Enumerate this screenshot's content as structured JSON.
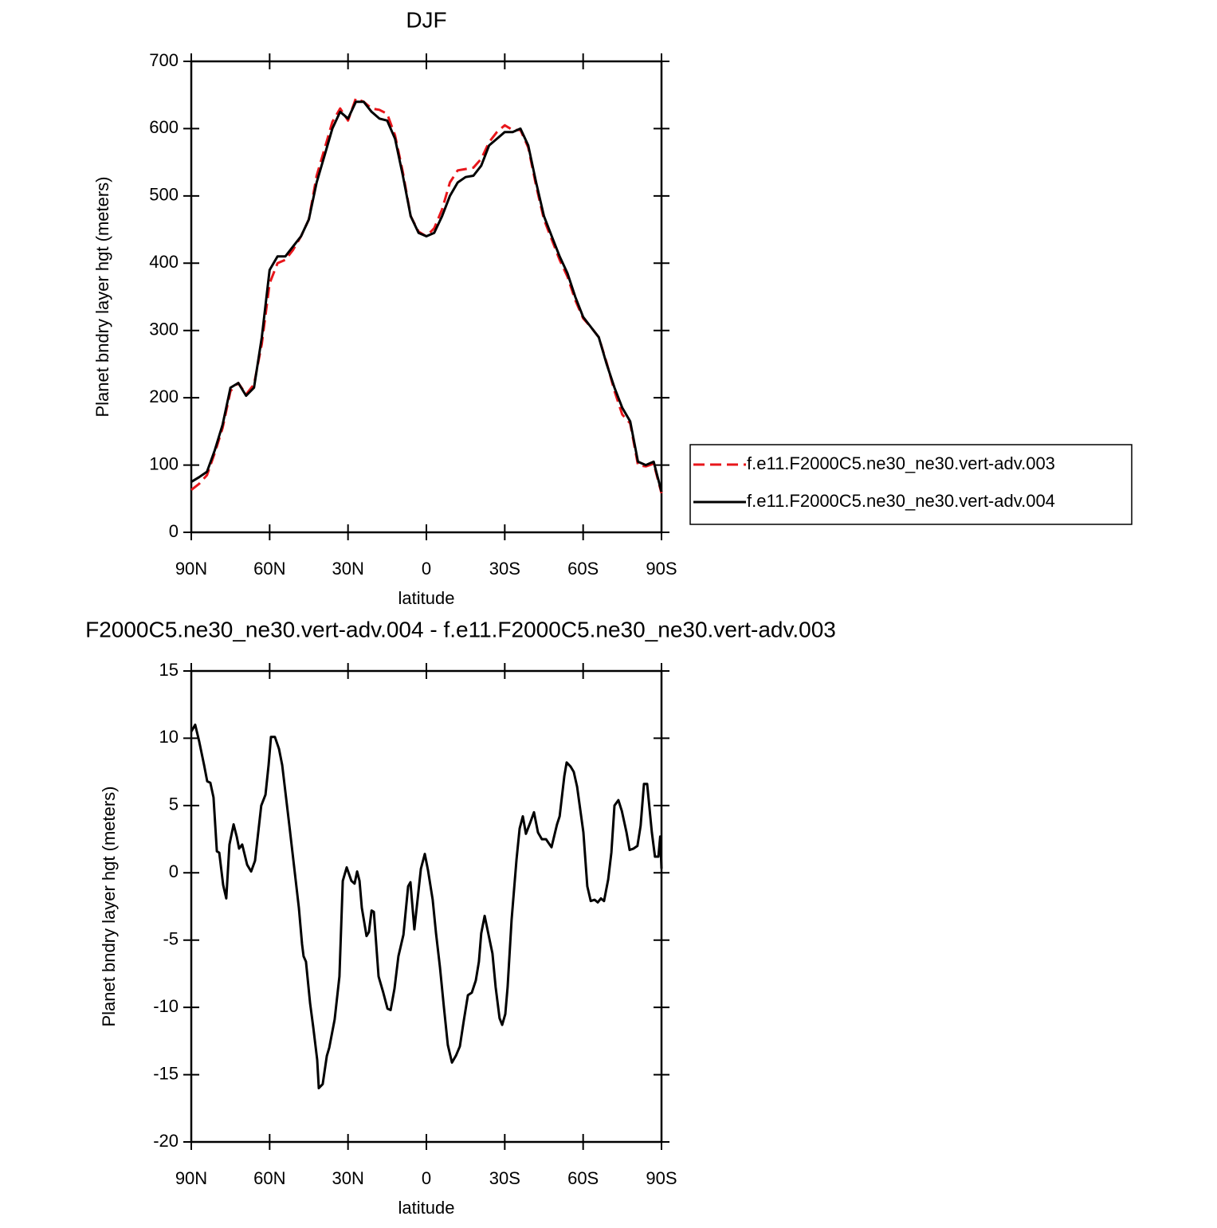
{
  "chart_data": [
    {
      "type": "line",
      "title": "DJF",
      "xlabel": "latitude",
      "ylabel": "Planet bndry layer hgt (meters)",
      "x": [
        90,
        87,
        84,
        81,
        78,
        75,
        72,
        69,
        66,
        63,
        60,
        57,
        54,
        51,
        48,
        45,
        42,
        39,
        36,
        33,
        30,
        27,
        24,
        21,
        18,
        15,
        12,
        9,
        6,
        3,
        0,
        -3,
        -6,
        -9,
        -12,
        -15,
        -18,
        -21,
        -24,
        -27,
        -30,
        -33,
        -36,
        -39,
        -42,
        -45,
        -48,
        -51,
        -54,
        -57,
        -60,
        -63,
        -66,
        -69,
        -72,
        -75,
        -78,
        -81,
        -84,
        -87,
        -90
      ],
      "series": [
        {
          "name": "f.e11.F2000C5.ne30_ne30.vert-adv.003",
          "color": "#e8161b",
          "dash": "dashed",
          "values": [
            63,
            72,
            85,
            118,
            155,
            210,
            222,
            205,
            220,
            280,
            370,
            400,
            405,
            420,
            440,
            465,
            530,
            570,
            610,
            630,
            612,
            645,
            640,
            630,
            628,
            622,
            590,
            535,
            470,
            447,
            440,
            452,
            480,
            520,
            538,
            540,
            542,
            555,
            580,
            595,
            605,
            598,
            598,
            572,
            515,
            465,
            435,
            405,
            380,
            345,
            318,
            305,
            290,
            252,
            210,
            175,
            162,
            100,
            98,
            102,
            58
          ]
        },
        {
          "name": "f.e11.F2000C5.ne30_ne30.vert-adv.004",
          "color": "#000000",
          "dash": "solid",
          "values": [
            75,
            82,
            90,
            122,
            160,
            215,
            222,
            203,
            215,
            290,
            390,
            410,
            410,
            425,
            440,
            465,
            520,
            560,
            600,
            625,
            615,
            640,
            640,
            625,
            615,
            612,
            585,
            530,
            470,
            445,
            440,
            445,
            470,
            500,
            520,
            528,
            530,
            545,
            575,
            585,
            595,
            595,
            600,
            575,
            520,
            470,
            440,
            410,
            385,
            350,
            320,
            305,
            290,
            250,
            215,
            185,
            165,
            105,
            100,
            105,
            60
          ]
        }
      ],
      "xlim": [
        90,
        -90
      ],
      "xticks": [
        {
          "value": 90,
          "label": "90N"
        },
        {
          "value": 60,
          "label": "60N"
        },
        {
          "value": 30,
          "label": "30N"
        },
        0,
        {
          "value": -30,
          "label": "30S"
        },
        {
          "value": -60,
          "label": "60S"
        },
        {
          "value": -90,
          "label": "90S"
        }
      ],
      "ylim": [
        0,
        700
      ],
      "yticks": [
        0,
        100,
        200,
        300,
        400,
        500,
        600,
        700
      ],
      "legend": "right"
    },
    {
      "type": "line",
      "title": "F2000C5.ne30_ne30.vert-adv.004 - f.e11.F2000C5.ne30_ne30.vert-adv.003",
      "xlabel": "latitude",
      "ylabel": "Planet bndry layer hgt (meters)",
      "x": [
        90,
        88.5,
        87,
        85.1,
        83.9,
        82.7,
        81.5,
        80.2,
        79.3,
        77.8,
        76.6,
        75.4,
        73.8,
        72.6,
        71.7,
        70.5,
        68.6,
        67.1,
        65.6,
        63.2,
        61.6,
        60.4,
        59.5,
        58,
        56.4,
        55.2,
        52.5,
        48.8,
        47.6,
        47,
        46.1,
        44.5,
        43.3,
        41.8,
        41.2,
        39.7,
        38.1,
        37.2,
        35.1,
        33.3,
        32,
        30.5,
        28.7,
        27.5,
        26.5,
        25.6,
        24.7,
        22.9,
        22,
        21,
        20.1,
        18.3,
        16.5,
        14.9,
        13.7,
        12.2,
        10.7,
        8.8,
        7,
        6.1,
        4.6,
        3.4,
        2.1,
        0.6,
        -0.6,
        -2.4,
        -3.7,
        -5.2,
        -6.7,
        -8.2,
        -9.8,
        -11.3,
        -12.8,
        -14.3,
        -15.9,
        -17.4,
        -18.9,
        -20.1,
        -21,
        -22.3,
        -23.8,
        -25.3,
        -26.5,
        -28,
        -29,
        -30.2,
        -31.1,
        -32.6,
        -34.5,
        -35.7,
        -36.9,
        -38.1,
        -39.7,
        -41.2,
        -42.7,
        -44.2,
        -45.8,
        -47.9,
        -50,
        -51,
        -52.8,
        -53.7,
        -55.2,
        -56.4,
        -57.7,
        -60.1,
        -61.6,
        -62.9,
        -64.4,
        -65.6,
        -66.8,
        -68,
        -69.6,
        -70.8,
        -72,
        -73.5,
        -74.8,
        -76.6,
        -77.8,
        -79.3,
        -80.8,
        -82,
        -83.3,
        -84.5,
        -86.3,
        -87.5,
        -88.8,
        -89.5,
        -90
      ],
      "values": [
        10.5,
        11.0,
        9.8,
        8.0,
        6.8,
        6.7,
        5.6,
        1.6,
        1.5,
        -0.9,
        -1.9,
        2.1,
        3.6,
        2.7,
        1.8,
        2.1,
        0.6,
        0.1,
        0.9,
        5.0,
        5.8,
        8.0,
        10.1,
        10.1,
        9.2,
        8.0,
        3.6,
        -2.6,
        -5.3,
        -6.2,
        -6.6,
        -9.7,
        -11.5,
        -13.9,
        -16.0,
        -15.7,
        -13.6,
        -13.0,
        -10.9,
        -7.7,
        -0.6,
        0.4,
        -0.6,
        -0.8,
        0.1,
        -0.6,
        -2.6,
        -4.7,
        -4.4,
        -2.8,
        -2.9,
        -7.7,
        -8.9,
        -10.1,
        -10.2,
        -8.6,
        -6.2,
        -4.6,
        -1.0,
        -0.7,
        -4.2,
        -2.0,
        0.3,
        1.4,
        0.2,
        -2.0,
        -4.5,
        -7.0,
        -10,
        -12.8,
        -14.1,
        -13.6,
        -12.9,
        -11,
        -9.1,
        -8.9,
        -8.0,
        -6.6,
        -4.5,
        -3.2,
        -4.6,
        -6.0,
        -8.5,
        -10.8,
        -11.3,
        -10.5,
        -8.5,
        -3.5,
        1.0,
        3.3,
        4.2,
        2.9,
        3.7,
        4.5,
        3.0,
        2.5,
        2.5,
        1.9,
        3.6,
        4.2,
        7.2,
        8.2,
        7.9,
        7.5,
        6.4,
        3.0,
        -1.0,
        -2.1,
        -2.0,
        -2.2,
        -1.9,
        -2.1,
        -0.5,
        1.5,
        5.0,
        5.4,
        4.6,
        3.0,
        1.7,
        1.8,
        2.0,
        3.5,
        6.6,
        6.6,
        3.0,
        1.2,
        1.2,
        2.7,
        0.3
      ],
      "color": "#000000",
      "xlim": [
        90,
        -90
      ],
      "xticks": [
        {
          "value": 90,
          "label": "90N"
        },
        {
          "value": 60,
          "label": "60N"
        },
        {
          "value": 30,
          "label": "30N"
        },
        0,
        {
          "value": -30,
          "label": "30S"
        },
        {
          "value": -60,
          "label": "60S"
        },
        {
          "value": -90,
          "label": "90S"
        }
      ],
      "ylim": [
        -20,
        15
      ],
      "yticks": [
        -20,
        -15,
        -10,
        -5,
        0,
        5,
        10,
        15
      ]
    }
  ]
}
